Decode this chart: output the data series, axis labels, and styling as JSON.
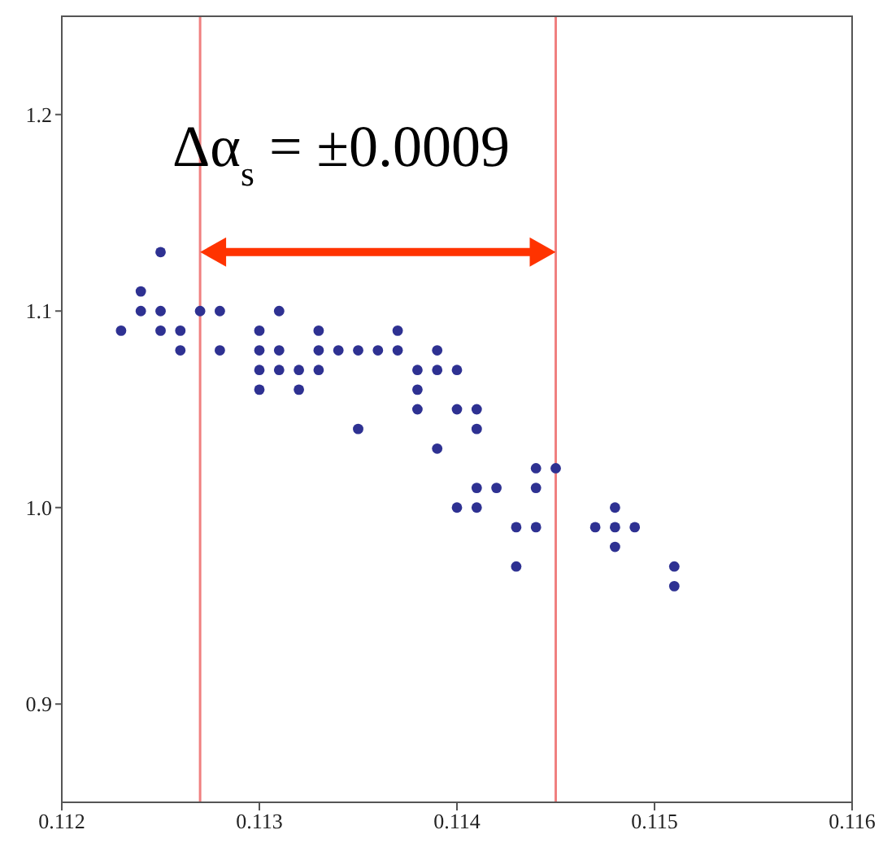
{
  "chart_data": {
    "type": "scatter",
    "xlim": [
      0.112,
      0.116
    ],
    "ylim": [
      0.85,
      1.25
    ],
    "xticks": [
      0.112,
      0.113,
      0.114,
      0.115,
      0.116
    ],
    "yticks": [
      {
        "value": 0.9,
        "label": "0.9"
      },
      {
        "value": 1,
        "label": "1.0"
      },
      {
        "value": 1.1,
        "label": "1.1"
      },
      {
        "value": 1.2,
        "label": "1.2"
      }
    ],
    "grid": false,
    "legend": false,
    "marker": "circle",
    "series": [
      {
        "color": "#2e3192",
        "x": [
          0.1123,
          0.1124,
          0.1124,
          0.1125,
          0.1125,
          0.1125,
          0.1126,
          0.1126,
          0.1127,
          0.1128,
          0.1128,
          0.113,
          0.113,
          0.113,
          0.113,
          0.1131,
          0.1131,
          0.1131,
          0.1132,
          0.1132,
          0.1133,
          0.1133,
          0.1133,
          0.1134,
          0.1135,
          0.1135,
          0.1136,
          0.1137,
          0.1137,
          0.1138,
          0.1138,
          0.1138,
          0.1139,
          0.1139,
          0.1139,
          0.114,
          0.114,
          0.114,
          0.1141,
          0.1141,
          0.1141,
          0.1141,
          0.1142,
          0.1143,
          0.1143,
          0.1144,
          0.1144,
          0.1144,
          0.1145,
          0.1147,
          0.1148,
          0.1148,
          0.1148,
          0.1149,
          0.1151,
          0.1151
        ],
        "values": [
          1.09,
          1.11,
          1.1,
          1.13,
          1.1,
          1.09,
          1.09,
          1.08,
          1.1,
          1.1,
          1.08,
          1.09,
          1.08,
          1.07,
          1.06,
          1.1,
          1.08,
          1.07,
          1.07,
          1.06,
          1.09,
          1.08,
          1.07,
          1.08,
          1.08,
          1.04,
          1.08,
          1.09,
          1.08,
          1.07,
          1.06,
          1.05,
          1.08,
          1.07,
          1.03,
          1.05,
          1.0,
          1.07,
          1.05,
          1.04,
          1.01,
          1.0,
          1.01,
          0.99,
          0.97,
          1.02,
          1.01,
          0.99,
          1.02,
          0.99,
          1.0,
          0.99,
          0.98,
          0.99,
          0.97,
          0.96
        ]
      }
    ],
    "ref_lines": [
      {
        "axis": "x",
        "value": 0.1127,
        "color": "#f08080"
      },
      {
        "axis": "x",
        "value": 0.1145,
        "color": "#f08080"
      }
    ],
    "annotations": [
      "Δα$_{s}$ = ±0.0009"
    ]
  }
}
